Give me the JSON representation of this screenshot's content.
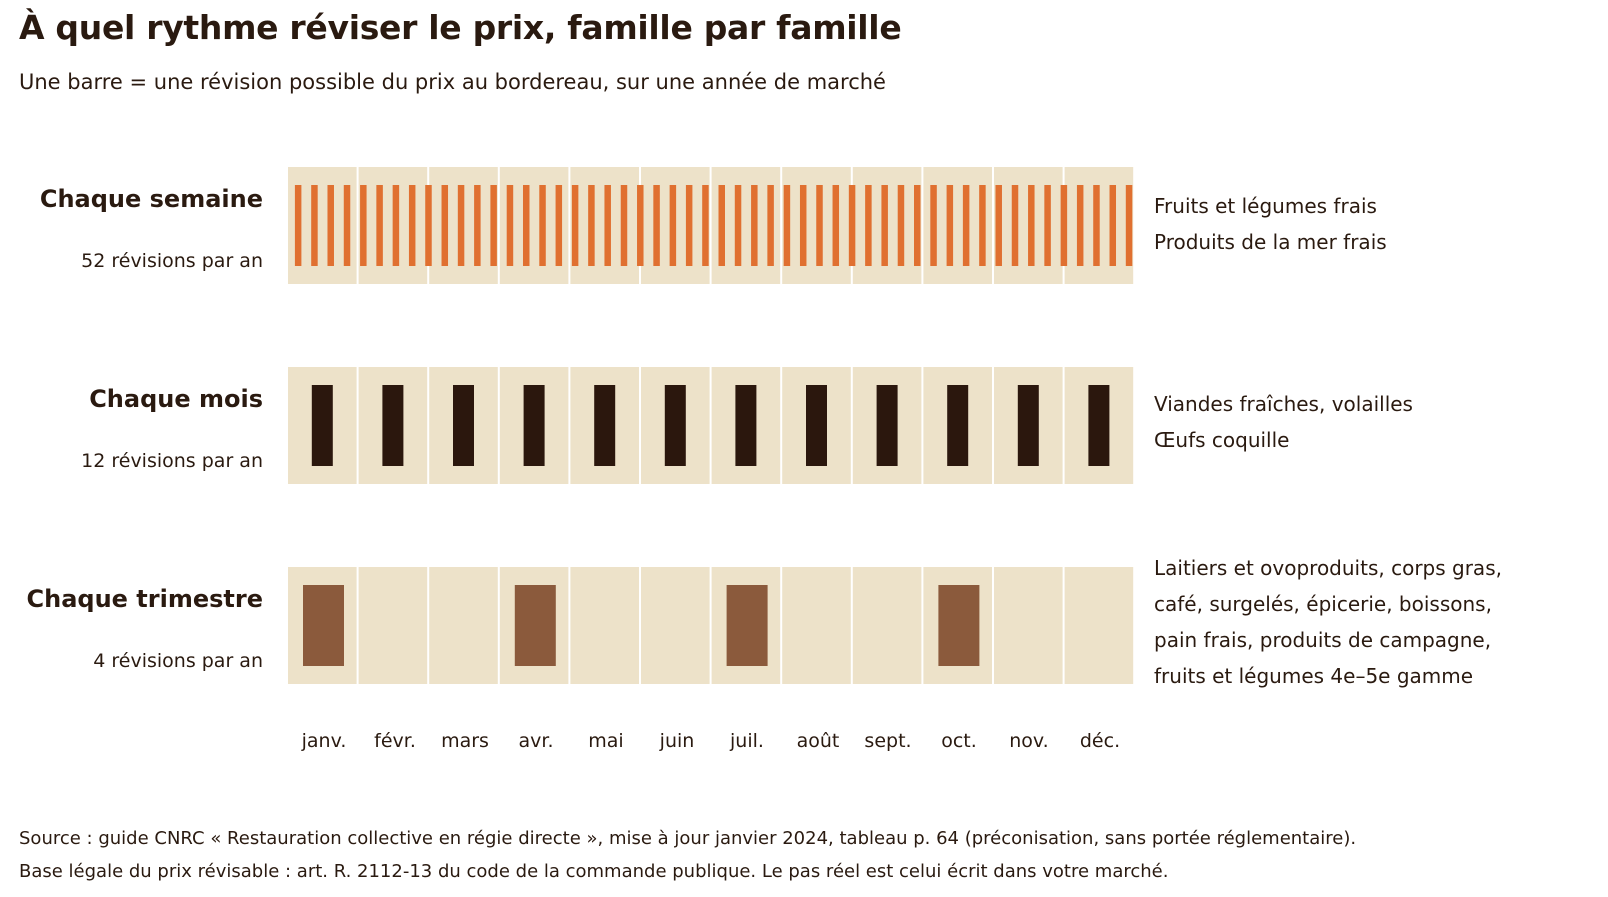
{
  "chart_data": {
    "type": "bar",
    "title": "À quel rythme réviser le prix, famille par famille",
    "subtitle": "Une barre = une révision possible du prix au bordereau, sur une année de marché",
    "categories": [
      "janv.",
      "févr.",
      "mars",
      "avr.",
      "mai",
      "juin",
      "juil.",
      "août",
      "sept.",
      "oct.",
      "nov.",
      "déc."
    ],
    "series": [
      {
        "name": "Chaque semaine",
        "count_label": "52 révisions par an",
        "revisions_per_year": 52,
        "color": "#e07030",
        "families": [
          "Fruits et légumes frais",
          "Produits de la mer frais"
        ]
      },
      {
        "name": "Chaque mois",
        "count_label": "12 révisions par an",
        "revisions_per_year": 12,
        "color": "#2b170d",
        "families": [
          "Viandes fraîches, volailles",
          "Œufs coquille"
        ]
      },
      {
        "name": "Chaque trimestre",
        "count_label": "4 révisions par an",
        "revisions_per_year": 4,
        "revision_months": [
          "janv.",
          "avr.",
          "juil.",
          "oct."
        ],
        "color": "#8b5a3c",
        "families": [
          "Laitiers et ovoproduits, corps gras,",
          "café, surgelés, épicerie, boissons,",
          "pain frais, produits de campagne,",
          "fruits et légumes 4e–5e gamme"
        ]
      }
    ],
    "background_color": "#ede2c9",
    "grid": true
  },
  "source": {
    "line1": "Source : guide CNRC « Restauration collective en régie directe », mise à jour janvier 2024, tableau p. 64 (préconisation, sans portée réglementaire).",
    "line2": "Base légale du prix révisable : art. R. 2112-13 du code de la commande publique. Le pas réel est celui écrit dans votre marché."
  }
}
